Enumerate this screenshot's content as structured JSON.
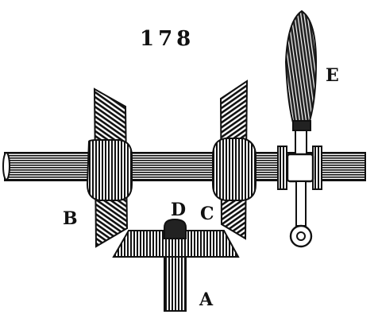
{
  "figure_number": "178",
  "labels": {
    "a": "A",
    "b": "B",
    "c": "C",
    "d": "D",
    "e": "E"
  },
  "ink_color": "#111111",
  "paper_color": "#ffffff"
}
